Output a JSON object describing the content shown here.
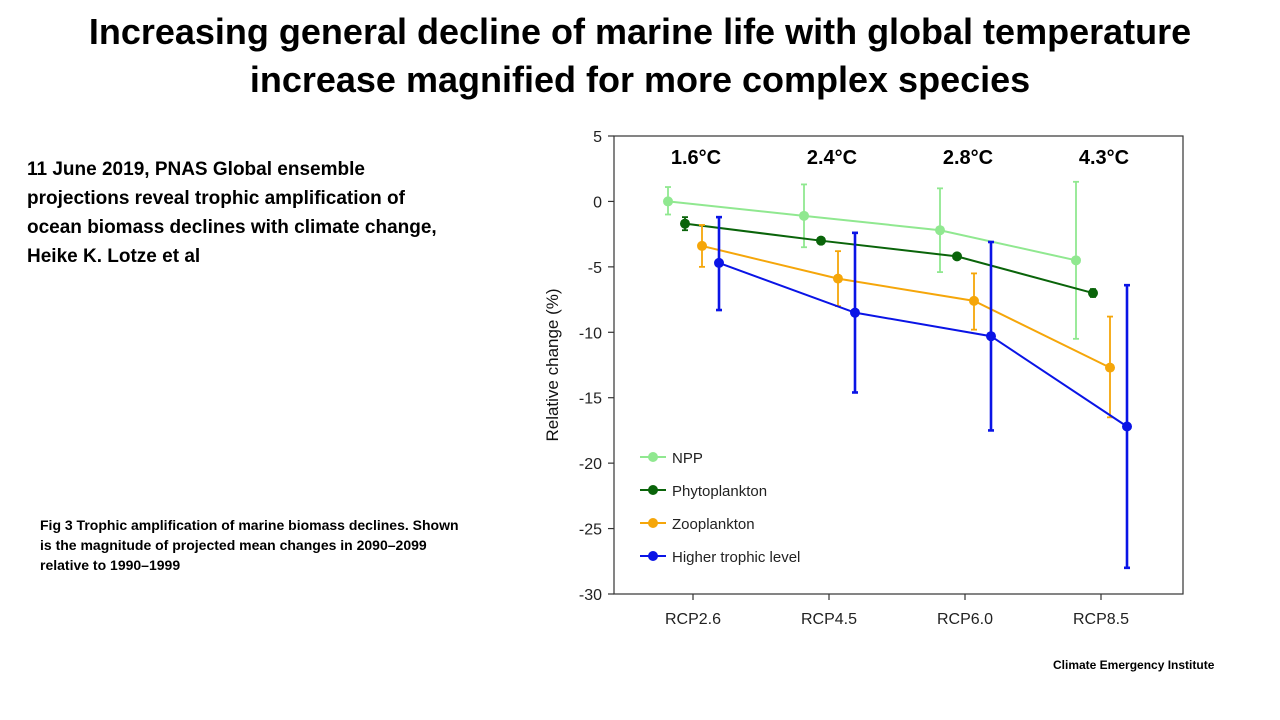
{
  "slide": {
    "title_line1": "Increasing general decline of marine life with  global temperature",
    "title_line2": "increase magnified for more complex  species",
    "citation_line1": "11 June 2019, PNAS Global ensemble",
    "citation_line2": "projections reveal trophic amplification of",
    "citation_line3": "ocean biomass declines with climate change,",
    "citation_line4": "Heike K. Lotze et al",
    "caption_line1": "Fig 3 Trophic amplification of marine biomass declines. Shown",
    "caption_line2": "is the magnitude  of projected mean changes in 2090–2099",
    "caption_line3": "relative to 1990–1999",
    "credit": "Climate Emergency Institute"
  },
  "chart_data": {
    "type": "line",
    "ylabel": "Relative change (%)",
    "xlabel": "",
    "categories": [
      "RCP2.6",
      "RCP4.5",
      "RCP6.0",
      "RCP8.5"
    ],
    "temperature_labels": [
      "1.6°C",
      "2.4°C",
      "2.8°C",
      "4.3°C"
    ],
    "ylim": [
      -30,
      5
    ],
    "yticks": [
      5,
      0,
      -5,
      -10,
      -15,
      -20,
      -25,
      -30
    ],
    "grid": false,
    "legend_position": "bottom-left",
    "series": [
      {
        "name": "NPP",
        "color": "#90e890",
        "values": [
          0,
          -1.1,
          -2.2,
          -4.5
        ],
        "err_low": [
          -1.0,
          -3.5,
          -5.4,
          -10.5
        ],
        "err_high": [
          1.1,
          1.3,
          1.0,
          1.5
        ]
      },
      {
        "name": "Phytoplankton",
        "color": "#0a640a",
        "values": [
          -1.7,
          -3.0,
          -4.2,
          -7.0
        ],
        "err_low": [
          -2.2,
          -3.2,
          -4.4,
          -7.3
        ],
        "err_high": [
          -1.2,
          -2.8,
          -4.0,
          -6.7
        ]
      },
      {
        "name": "Zooplankton",
        "color": "#f5a60a",
        "values": [
          -3.4,
          -5.9,
          -7.6,
          -12.7
        ],
        "err_low": [
          -5.0,
          -8.0,
          -9.8,
          -16.5
        ],
        "err_high": [
          -1.8,
          -3.8,
          -5.5,
          -8.8
        ]
      },
      {
        "name": "Higher trophic level",
        "color": "#0a14e6",
        "values": [
          -4.7,
          -8.5,
          -10.3,
          -17.2
        ],
        "err_low": [
          -8.3,
          -14.6,
          -17.5,
          -28.0
        ],
        "err_high": [
          -1.2,
          -2.4,
          -3.1,
          -6.4
        ]
      }
    ]
  }
}
